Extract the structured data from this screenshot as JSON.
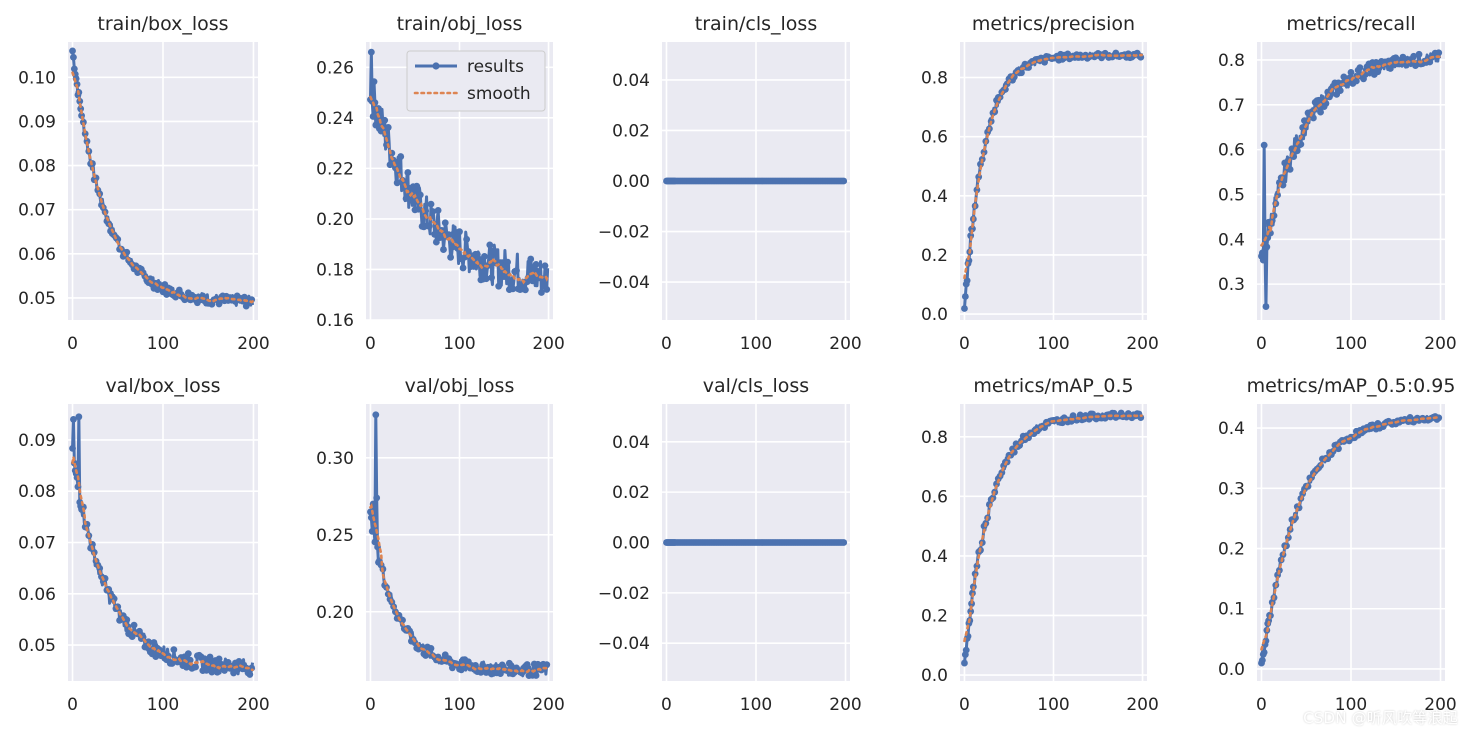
{
  "colors": {
    "results": "#4c72b0",
    "smooth": "#dd8452",
    "axes_bg": "#eaeaf2",
    "grid": "#ffffff",
    "text": "#262626"
  },
  "legend": {
    "results": "results",
    "smooth": "smooth",
    "placement": "top-right",
    "in_chart": 1
  },
  "watermark": "CSDN @听风吹等浪起",
  "chart_data": [
    {
      "type": "line",
      "title": "train/box_loss",
      "xlim": [
        -5,
        205
      ],
      "ylim": [
        0.045,
        0.108
      ],
      "xticks": [
        0,
        100,
        200
      ],
      "yticks": [
        0.05,
        0.06,
        0.07,
        0.08,
        0.09,
        0.1
      ],
      "ytick_labels": [
        "0.05",
        "0.06",
        "0.07",
        "0.08",
        "0.09",
        "0.10"
      ],
      "curve": "decay",
      "start": 0.106,
      "end": 0.049,
      "rate": 35,
      "noise": 0.0012,
      "spikes": []
    },
    {
      "type": "line",
      "title": "train/obj_loss",
      "xlim": [
        -5,
        205
      ],
      "ylim": [
        0.16,
        0.27
      ],
      "xticks": [
        0,
        100,
        200
      ],
      "yticks": [
        0.16,
        0.18,
        0.2,
        0.22,
        0.24,
        0.26
      ],
      "ytick_labels": [
        "0.16",
        "0.18",
        "0.20",
        "0.22",
        "0.24",
        "0.26"
      ],
      "curve": "decay",
      "start": 0.252,
      "end": 0.174,
      "rate": 60,
      "noise": 0.008,
      "spikes": [
        [
          1,
          0.266
        ]
      ]
    },
    {
      "type": "line",
      "title": "train/cls_loss",
      "xlim": [
        -5,
        205
      ],
      "ylim": [
        -0.055,
        0.055
      ],
      "xticks": [
        0,
        100,
        200
      ],
      "yticks": [
        -0.04,
        -0.02,
        0.0,
        0.02,
        0.04
      ],
      "ytick_labels": [
        "−0.04",
        "−0.02",
        "0.00",
        "0.02",
        "0.04"
      ],
      "curve": "flat",
      "start": 0,
      "end": 0,
      "rate": 1,
      "noise": 0,
      "spikes": []
    },
    {
      "type": "line",
      "title": "metrics/precision",
      "xlim": [
        -5,
        205
      ],
      "ylim": [
        -0.02,
        0.92
      ],
      "xticks": [
        0,
        100,
        200
      ],
      "yticks": [
        0.0,
        0.2,
        0.4,
        0.6,
        0.8
      ],
      "ytick_labels": [
        "0.0",
        "0.2",
        "0.4",
        "0.6",
        "0.8"
      ],
      "curve": "rise",
      "start": 0.02,
      "end": 0.875,
      "rate": 22,
      "noise": 0.02,
      "spikes": []
    },
    {
      "type": "line",
      "title": "metrics/recall",
      "xlim": [
        -5,
        205
      ],
      "ylim": [
        0.22,
        0.84
      ],
      "xticks": [
        0,
        100,
        200
      ],
      "yticks": [
        0.3,
        0.4,
        0.5,
        0.6,
        0.7,
        0.8
      ],
      "ytick_labels": [
        "0.3",
        "0.4",
        "0.5",
        "0.6",
        "0.7",
        "0.8"
      ],
      "curve": "rise",
      "start": 0.34,
      "end": 0.81,
      "rate": 45,
      "noise": 0.03,
      "spikes": [
        [
          3,
          0.61
        ],
        [
          5,
          0.25
        ]
      ]
    },
    {
      "type": "line",
      "title": "val/box_loss",
      "xlim": [
        -5,
        205
      ],
      "ylim": [
        0.043,
        0.097
      ],
      "xticks": [
        0,
        100,
        200
      ],
      "yticks": [
        0.05,
        0.06,
        0.07,
        0.08,
        0.09
      ],
      "ytick_labels": [
        "0.05",
        "0.06",
        "0.07",
        "0.08",
        "0.09"
      ],
      "curve": "decay",
      "start": 0.087,
      "end": 0.0455,
      "rate": 38,
      "noise": 0.0015,
      "spikes": [
        [
          1,
          0.094
        ],
        [
          7,
          0.0945
        ]
      ]
    },
    {
      "type": "line",
      "title": "val/obj_loss",
      "xlim": [
        -5,
        205
      ],
      "ylim": [
        0.155,
        0.335
      ],
      "xticks": [
        0,
        100,
        200
      ],
      "yticks": [
        0.2,
        0.25,
        0.3
      ],
      "ytick_labels": [
        "0.20",
        "0.25",
        "0.30"
      ],
      "curve": "decay",
      "start": 0.262,
      "end": 0.162,
      "rate": 30,
      "noise": 0.004,
      "spikes": [
        [
          3,
          0.27
        ],
        [
          6,
          0.328
        ],
        [
          7,
          0.274
        ]
      ]
    },
    {
      "type": "line",
      "title": "val/cls_loss",
      "xlim": [
        -5,
        205
      ],
      "ylim": [
        -0.055,
        0.055
      ],
      "xticks": [
        0,
        100,
        200
      ],
      "yticks": [
        -0.04,
        -0.02,
        0.0,
        0.02,
        0.04
      ],
      "ytick_labels": [
        "−0.04",
        "−0.02",
        "0.00",
        "0.02",
        "0.04"
      ],
      "curve": "flat",
      "start": 0,
      "end": 0,
      "rate": 1,
      "noise": 0,
      "spikes": []
    },
    {
      "type": "line",
      "title": "metrics/mAP_0.5",
      "xlim": [
        -5,
        205
      ],
      "ylim": [
        -0.02,
        0.91
      ],
      "xticks": [
        0,
        100,
        200
      ],
      "yticks": [
        0.0,
        0.2,
        0.4,
        0.6,
        0.8
      ],
      "ytick_labels": [
        "0.0",
        "0.2",
        "0.4",
        "0.6",
        "0.8"
      ],
      "curve": "rise",
      "start": 0.03,
      "end": 0.873,
      "rate": 28,
      "noise": 0.02,
      "spikes": []
    },
    {
      "type": "line",
      "title": "metrics/mAP_0.5:0.95",
      "xlim": [
        -5,
        205
      ],
      "ylim": [
        -0.02,
        0.44
      ],
      "xticks": [
        0,
        100,
        200
      ],
      "yticks": [
        0.0,
        0.1,
        0.2,
        0.3,
        0.4
      ],
      "ytick_labels": [
        "0.0",
        "0.1",
        "0.2",
        "0.3",
        "0.4"
      ],
      "curve": "rise",
      "start": 0.0,
      "end": 0.42,
      "rate": 40,
      "noise": 0.01,
      "spikes": []
    }
  ]
}
